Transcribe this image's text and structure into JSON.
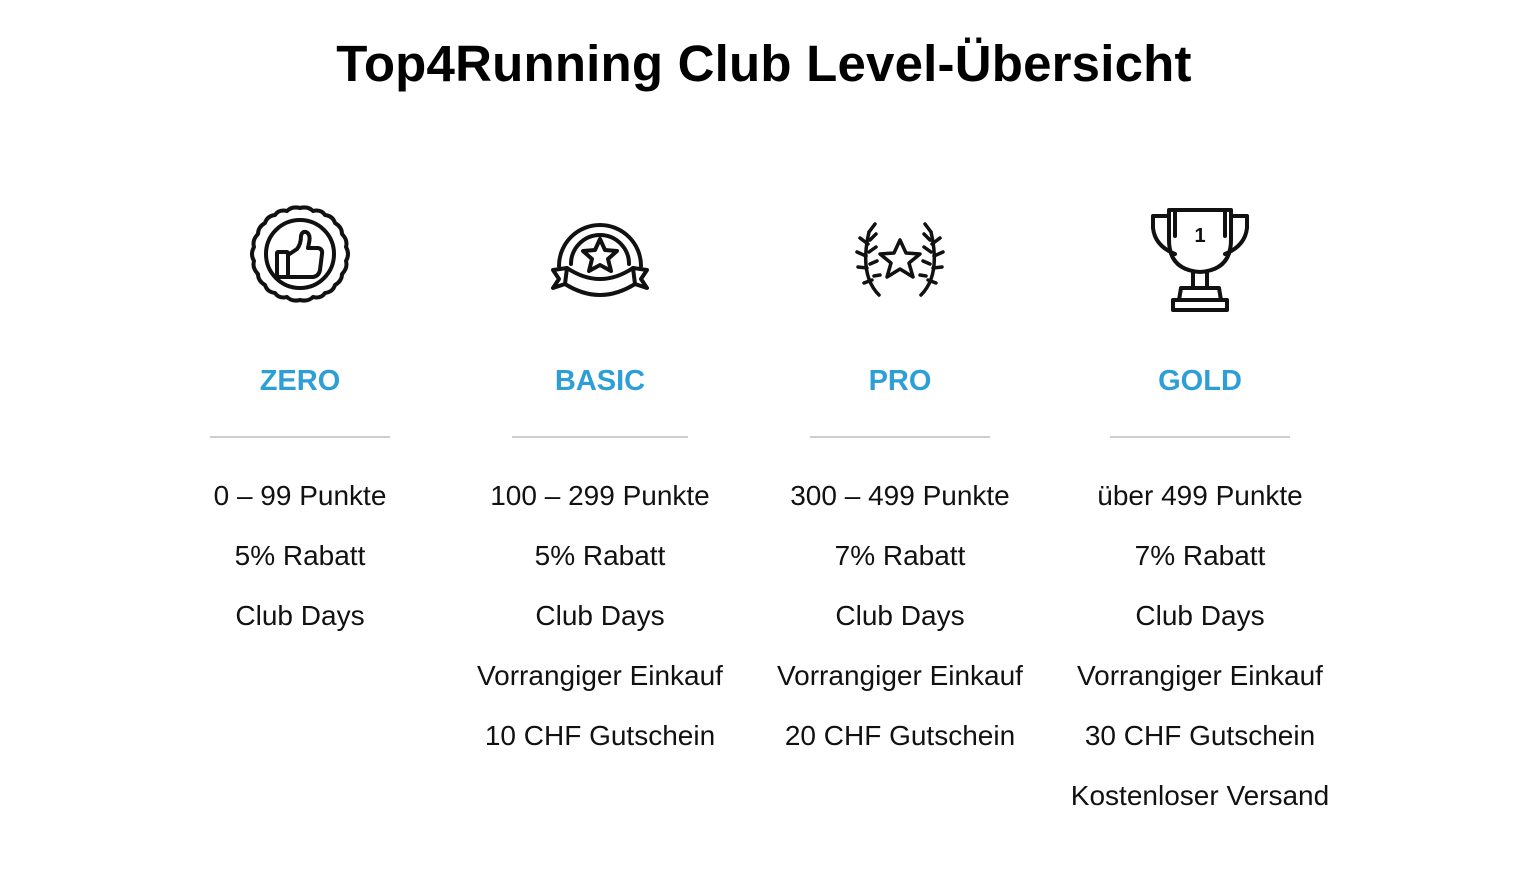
{
  "title": "Top4Running Club Level-Übersicht",
  "accent_color": "#2E9FD6",
  "levels": [
    {
      "name": "ZERO",
      "icon": "thumbs-up-badge-icon",
      "benefits": [
        "0 – 99 Punkte",
        "5% Rabatt",
        "Club Days"
      ]
    },
    {
      "name": "BASIC",
      "icon": "star-ribbon-badge-icon",
      "benefits": [
        "100 – 299 Punkte",
        "5% Rabatt",
        "Club Days",
        "Vorrangiger Einkauf",
        "10 CHF Gutschein"
      ]
    },
    {
      "name": "PRO",
      "icon": "star-laurel-icon",
      "benefits": [
        "300 – 499 Punkte",
        "7% Rabatt",
        "Club Days",
        "Vorrangiger Einkauf",
        "20 CHF Gutschein"
      ]
    },
    {
      "name": "GOLD",
      "icon": "trophy-icon",
      "benefits": [
        "über 499 Punkte",
        "7% Rabatt",
        "Club Days",
        "Vorrangiger Einkauf",
        "30 CHF Gutschein",
        "Kostenloser Versand"
      ]
    }
  ],
  "trophy_rank": "1"
}
